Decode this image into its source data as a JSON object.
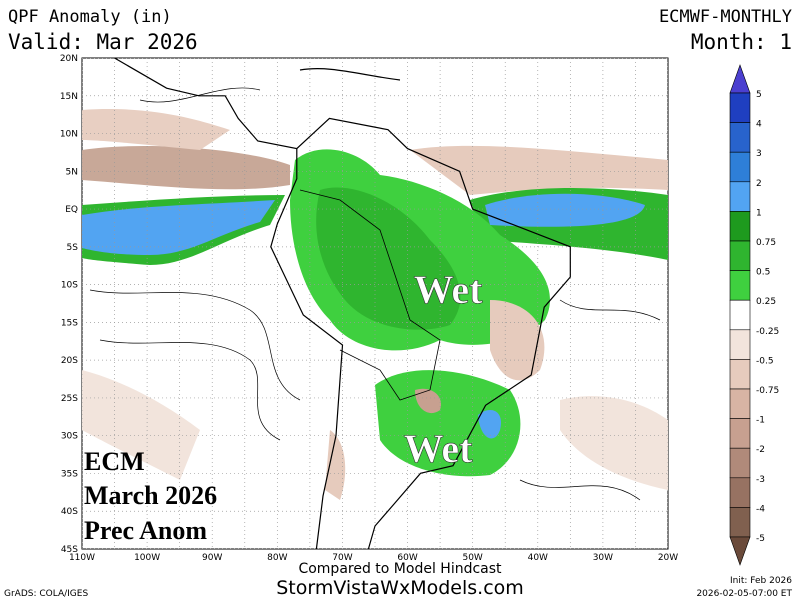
{
  "header": {
    "title": "QPF Anomaly (in)",
    "valid": "Valid: Mar 2026",
    "model": "ECMWF-MONTHLY",
    "month": "Month: 1"
  },
  "map": {
    "lat_labels": [
      "20N",
      "15N",
      "10N",
      "5N",
      "EQ",
      "5S",
      "10S",
      "15S",
      "20S",
      "25S",
      "30S",
      "35S",
      "40S",
      "45S"
    ],
    "lon_labels": [
      "110W",
      "100W",
      "90W",
      "80W",
      "70W",
      "60W",
      "50W",
      "40W",
      "30W",
      "20W"
    ],
    "annotations": [
      "Wet",
      "Wet"
    ],
    "overlay": [
      "ECM",
      "March 2026",
      "Prec Anom"
    ]
  },
  "colorbar": {
    "labels": [
      "5",
      "4",
      "3",
      "2",
      "1",
      "0.75",
      "0.5",
      "0.25",
      "-0.25",
      "-0.5",
      "-0.75",
      "-1",
      "-2",
      "-3",
      "-4",
      "-5"
    ],
    "colors": [
      "#4b3fd0",
      "#1f3fc0",
      "#2863cc",
      "#2e7fd8",
      "#52a4f2",
      "#1e9a1e",
      "#2fb52f",
      "#3fd03f",
      "#ffffff",
      "#f2e4dc",
      "#e6cbbd",
      "#d8b4a4",
      "#c7a090",
      "#b08a7a",
      "#977262",
      "#80604f",
      "#6a4a3a"
    ]
  },
  "footer": {
    "compared": "Compared to Model Hindcast",
    "site": "StormVistaWxModels.com",
    "grads": "GrADS: COLA/IGES",
    "init": "Init: Feb 2026",
    "stamp": "2026-02-05-07:00 ET"
  }
}
